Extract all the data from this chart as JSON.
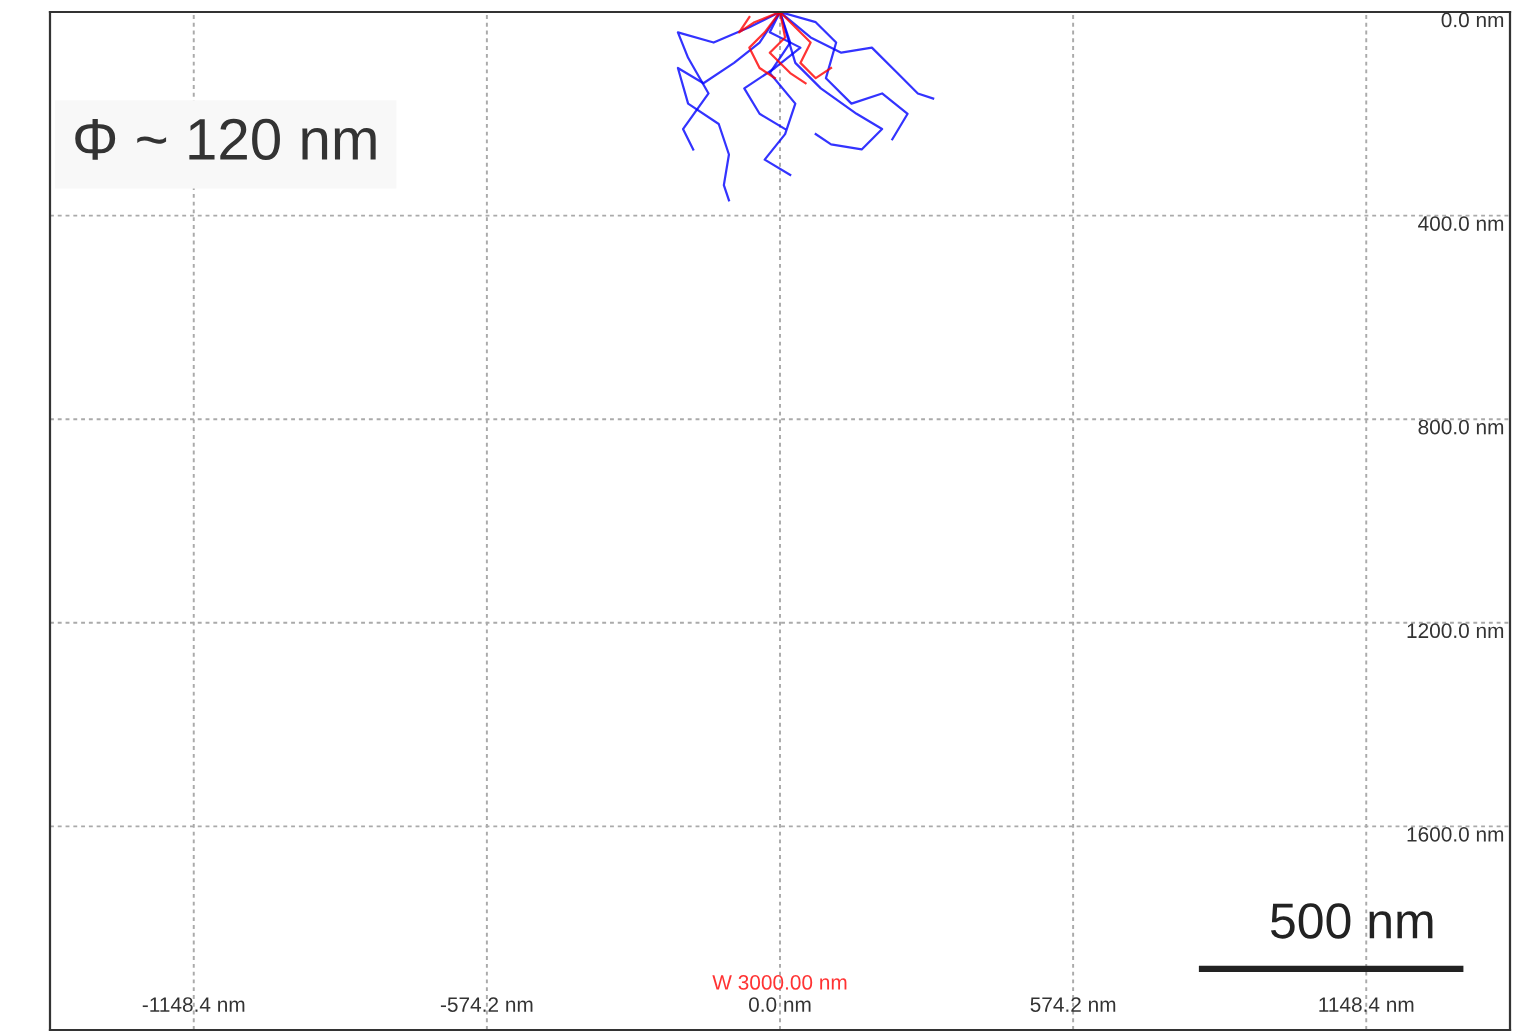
{
  "chart_data": {
    "type": "line",
    "annotations": [
      "Φ ~ 120 nm",
      "W 3000.00 nm",
      "500 nm"
    ],
    "xlim": [
      -1430,
      1430
    ],
    "ylim": [
      2000,
      0
    ],
    "xticks": [
      {
        "value": -1148.4,
        "label": "-1148.4 nm"
      },
      {
        "value": -574.2,
        "label": "-574.2 nm"
      },
      {
        "value": 0,
        "label": "0.0 nm"
      },
      {
        "value": 574.2,
        "label": "574.2 nm"
      },
      {
        "value": 1148.4,
        "label": "1148.4 nm"
      }
    ],
    "yticks": [
      {
        "value": 0,
        "label": "0.0 nm"
      },
      {
        "value": 400,
        "label": "400.0 nm"
      },
      {
        "value": 800,
        "label": "800.0 nm"
      },
      {
        "value": 1200,
        "label": "1200.0 nm"
      },
      {
        "value": 1600,
        "label": "1600.0 nm"
      }
    ],
    "grid": true,
    "line_style": "solid",
    "marker": "none",
    "series": [
      {
        "color": "#0000ff",
        "x": [
          0,
          -40,
          -90,
          -150,
          -200,
          -180,
          -120,
          -100,
          -110,
          -100
        ],
        "values": [
          0,
          60,
          100,
          140,
          110,
          180,
          220,
          280,
          340,
          370
        ]
      },
      {
        "color": "#0000ff",
        "x": [
          0,
          60,
          120,
          180,
          230,
          270,
          300
        ],
        "values": [
          0,
          50,
          80,
          70,
          120,
          160,
          170
        ]
      },
      {
        "color": "#0000ff",
        "x": [
          0,
          30,
          80,
          150,
          200,
          160,
          100,
          70
        ],
        "values": [
          0,
          100,
          150,
          200,
          230,
          270,
          260,
          240
        ]
      },
      {
        "color": "#0000ff",
        "x": [
          0,
          -60,
          -130,
          -200,
          -180,
          -140,
          -190,
          -170
        ],
        "values": [
          0,
          30,
          60,
          40,
          90,
          160,
          230,
          270
        ]
      },
      {
        "color": "#0000ff",
        "x": [
          0,
          20,
          -20,
          30,
          10,
          -30,
          20
        ],
        "values": [
          0,
          60,
          120,
          180,
          240,
          290,
          320
        ]
      },
      {
        "color": "#0000ff",
        "x": [
          0,
          70,
          110,
          90,
          140,
          200,
          250,
          220
        ],
        "values": [
          0,
          20,
          60,
          130,
          180,
          160,
          200,
          250
        ]
      },
      {
        "color": "#0000ff",
        "x": [
          0,
          -20,
          40,
          -10,
          -70,
          -40,
          10
        ],
        "values": [
          0,
          40,
          70,
          110,
          150,
          200,
          230
        ]
      },
      {
        "color": "#ff0000",
        "x": [
          0,
          -30,
          -60,
          -40,
          -10
        ],
        "values": [
          0,
          40,
          70,
          110,
          130
        ]
      },
      {
        "color": "#ff0000",
        "x": [
          0,
          30,
          60,
          40,
          70,
          100
        ],
        "values": [
          0,
          30,
          60,
          100,
          130,
          110
        ]
      },
      {
        "color": "#ff0000",
        "x": [
          0,
          10,
          -20,
          20,
          50
        ],
        "values": [
          0,
          50,
          80,
          120,
          140
        ]
      },
      {
        "color": "#ff0000",
        "x": [
          0,
          -50,
          -80,
          -60
        ],
        "values": [
          0,
          20,
          40,
          10
        ]
      }
    ]
  }
}
